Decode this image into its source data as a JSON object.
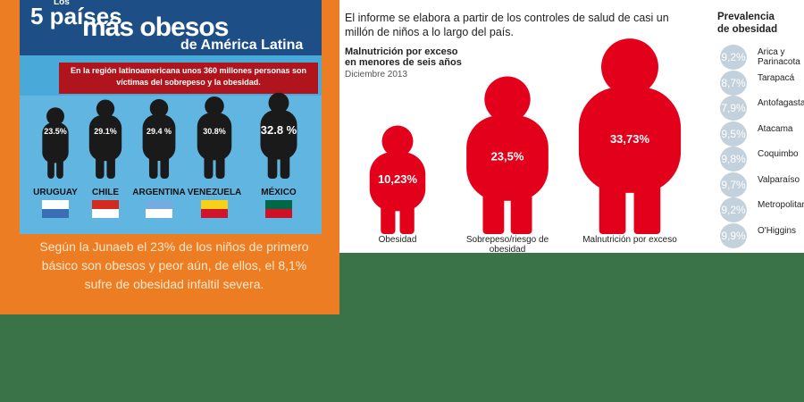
{
  "left": {
    "title": {
      "small": "Los",
      "line1": "5 países",
      "line2": "más obesos",
      "line3": "de América Latina"
    },
    "subtitle": "En la región latinoamericana unos 360 millones personas son víctimas del sobrepeso y la obesidad.",
    "countries": [
      {
        "name": "URUGUAY",
        "value": 23.5,
        "value_label": "23.5%"
      },
      {
        "name": "CHILE",
        "value": 29.1,
        "value_label": "29.1%"
      },
      {
        "name": "ARGENTINA",
        "value": 29.4,
        "value_label": "29.4 %"
      },
      {
        "name": "VENEZUELA",
        "value": 30.8,
        "value_label": "30.8%"
      },
      {
        "name": "MÉXICO",
        "value": 32.8,
        "value_label": "32.8 %"
      }
    ],
    "caption": "Según  la Junaeb el 23% de los niños de primero básico son obesos y peor aún, de ellos, el 8,1% sufre de obesidad infaltil severa."
  },
  "right": {
    "intro": "El informe se elabora a partir de los controles de salud de casi un millón de niños a lo largo del país.",
    "chart_title": "Malnutrición por exceso en menores de seis años",
    "date": "Diciembre 2013",
    "figures": [
      {
        "category": "Obesidad",
        "value": 10.23,
        "value_label": "10,23%"
      },
      {
        "category": "Sobrepeso/riesgo de obesidad",
        "value": 23.5,
        "value_label": "23,5%"
      },
      {
        "category": "Malnutrición por exceso",
        "value": 33.73,
        "value_label": "33,73%"
      }
    ],
    "prevalence_title": "Prevalencia de obesidad",
    "regions": [
      {
        "name": "Arica y Parinacota",
        "value": 9.2,
        "value_label": "9,2%"
      },
      {
        "name": "Tarapacá",
        "value": 8.7,
        "value_label": "8,7%"
      },
      {
        "name": "Antofagasta",
        "value": 7.9,
        "value_label": "7,9%"
      },
      {
        "name": "Atacama",
        "value": 9.5,
        "value_label": "9,5%"
      },
      {
        "name": "Coquimbo",
        "value": 9.8,
        "value_label": "9,8%"
      },
      {
        "name": "Valparaíso",
        "value": 9.7,
        "value_label": "9,7%"
      },
      {
        "name": "Metropolitana",
        "value": 9.2,
        "value_label": "9,2%"
      },
      {
        "name": "O'Higgins",
        "value": 9.9,
        "value_label": "9,9%"
      }
    ]
  }
}
